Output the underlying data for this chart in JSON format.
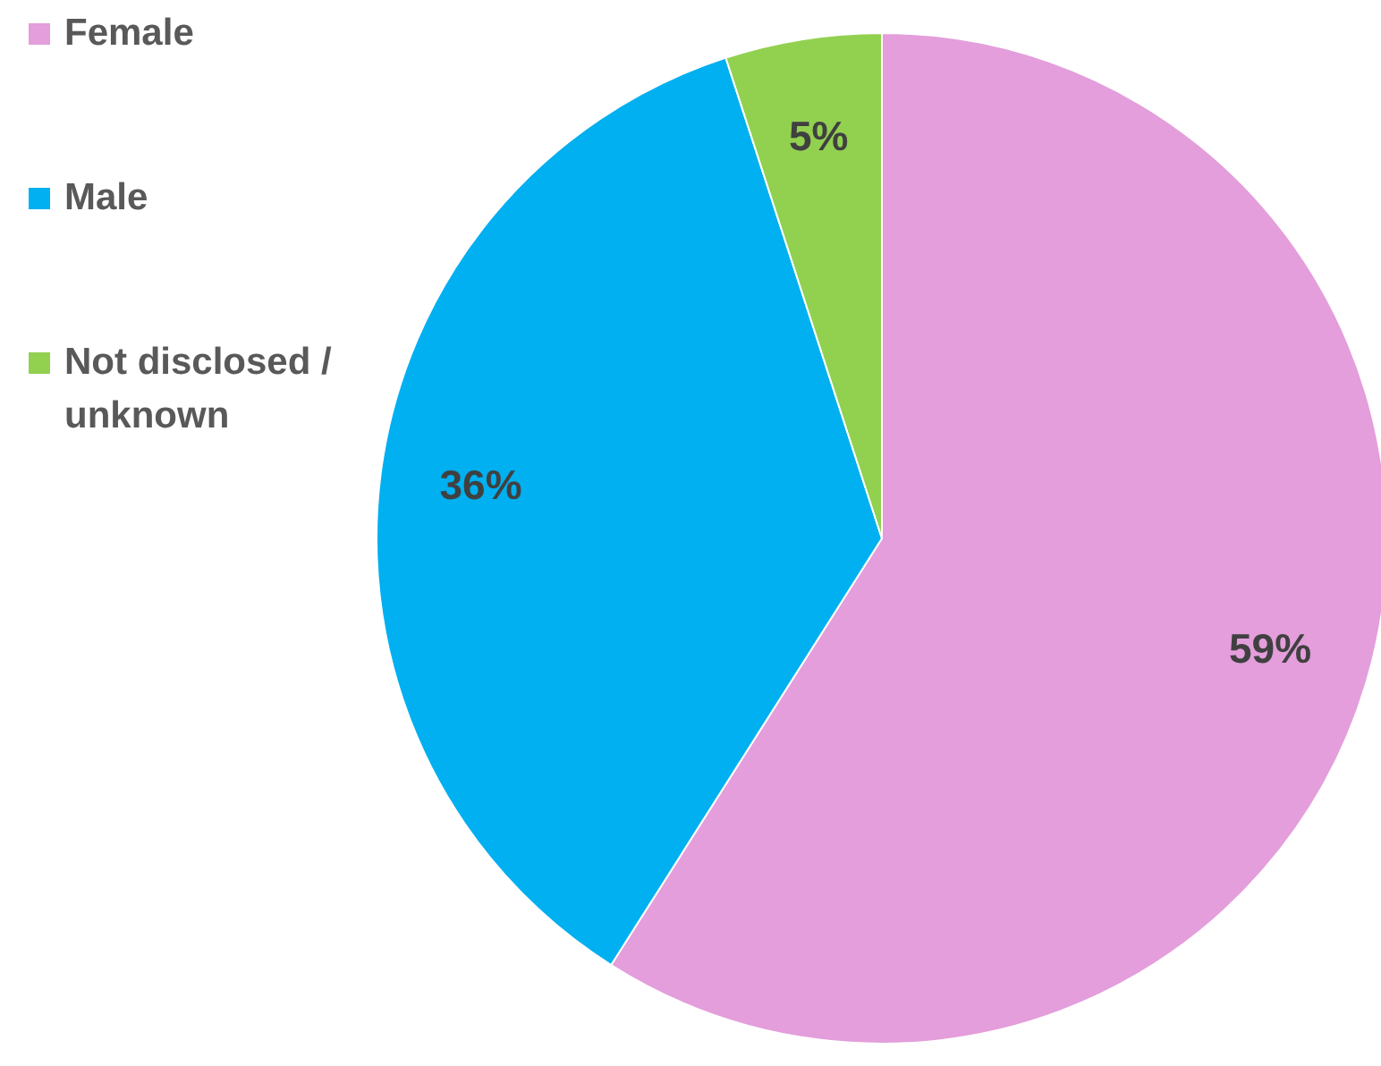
{
  "chart_data": {
    "type": "pie",
    "categories": [
      "Female",
      "Male",
      "Not disclosed / unknown"
    ],
    "values": [
      59,
      36,
      5
    ],
    "colors": [
      "#e39edb",
      "#00b0f0",
      "#92d050"
    ],
    "value_labels": [
      "59%",
      "36%",
      "5%"
    ],
    "legend": "top left"
  }
}
